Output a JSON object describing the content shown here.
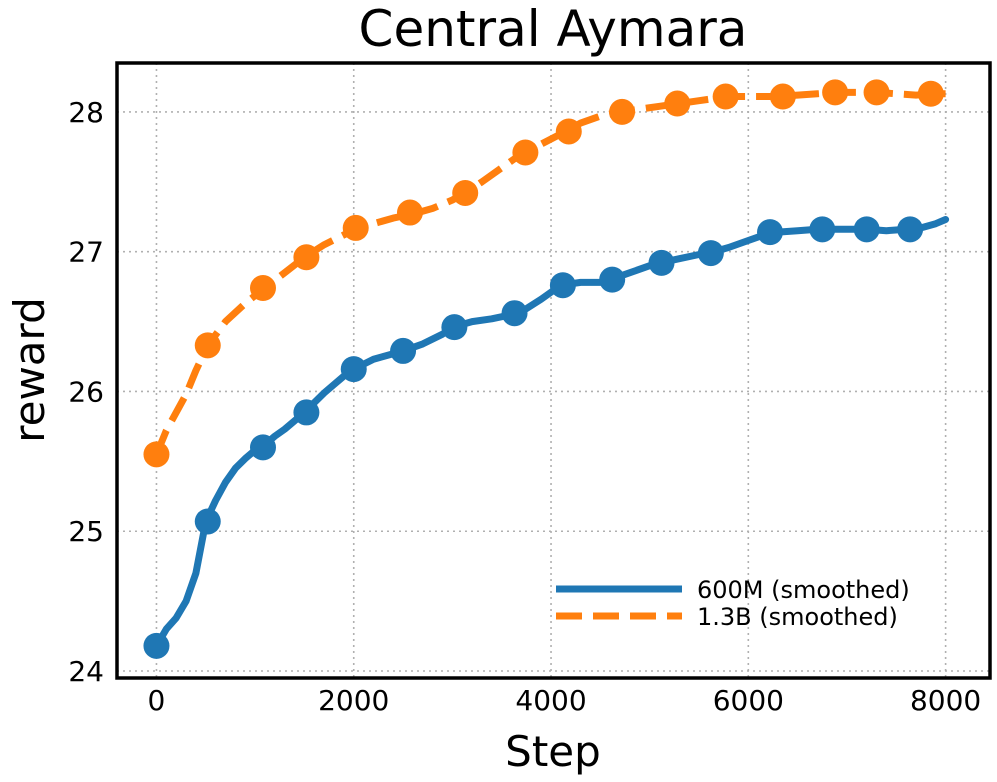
{
  "chart_data": {
    "type": "line",
    "title": "Central Aymara",
    "xlabel": "Step",
    "ylabel": "reward",
    "xlim": [
      -400,
      8450
    ],
    "ylim": [
      23.95,
      28.35
    ],
    "xticks": [
      0,
      2000,
      4000,
      6000,
      8000
    ],
    "yticks": [
      24,
      25,
      26,
      27,
      28
    ],
    "grid": true,
    "legend_position": "lower-right",
    "series": [
      {
        "name": "600M (smoothed)",
        "color": "#1f77b4",
        "line_style": "solid",
        "line": [
          [
            0,
            24.18
          ],
          [
            100,
            24.3
          ],
          [
            200,
            24.38
          ],
          [
            300,
            24.5
          ],
          [
            400,
            24.7
          ],
          [
            500,
            25.07
          ],
          [
            600,
            25.22
          ],
          [
            700,
            25.35
          ],
          [
            800,
            25.45
          ],
          [
            900,
            25.52
          ],
          [
            1000,
            25.58
          ],
          [
            1100,
            25.62
          ],
          [
            1200,
            25.68
          ],
          [
            1300,
            25.73
          ],
          [
            1400,
            25.79
          ],
          [
            1500,
            25.85
          ],
          [
            1600,
            25.92
          ],
          [
            1700,
            25.99
          ],
          [
            1800,
            26.05
          ],
          [
            1900,
            26.11
          ],
          [
            2000,
            26.16
          ],
          [
            2200,
            26.23
          ],
          [
            2400,
            26.27
          ],
          [
            2500,
            26.29
          ],
          [
            2700,
            26.34
          ],
          [
            2900,
            26.41
          ],
          [
            3000,
            26.46
          ],
          [
            3200,
            26.5
          ],
          [
            3400,
            26.52
          ],
          [
            3600,
            26.55
          ],
          [
            3700,
            26.57
          ],
          [
            3900,
            26.66
          ],
          [
            4100,
            26.76
          ],
          [
            4300,
            26.78
          ],
          [
            4500,
            26.78
          ],
          [
            4600,
            26.8
          ],
          [
            4800,
            26.85
          ],
          [
            5000,
            26.9
          ],
          [
            5100,
            26.92
          ],
          [
            5300,
            26.95
          ],
          [
            5500,
            26.98
          ],
          [
            5600,
            26.99
          ],
          [
            5800,
            27.03
          ],
          [
            6000,
            27.08
          ],
          [
            6200,
            27.13
          ],
          [
            6300,
            27.14
          ],
          [
            6500,
            27.15
          ],
          [
            6700,
            27.16
          ],
          [
            6900,
            27.16
          ],
          [
            7100,
            27.16
          ],
          [
            7200,
            27.16
          ],
          [
            7400,
            27.15
          ],
          [
            7600,
            27.16
          ],
          [
            7700,
            27.16
          ],
          [
            7900,
            27.2
          ],
          [
            8000,
            27.23
          ]
        ],
        "markers": [
          [
            0,
            24.18
          ],
          [
            520,
            25.07
          ],
          [
            1080,
            25.6
          ],
          [
            1520,
            25.85
          ],
          [
            2000,
            26.16
          ],
          [
            2500,
            26.29
          ],
          [
            3020,
            26.46
          ],
          [
            3630,
            26.56
          ],
          [
            4120,
            26.76
          ],
          [
            4620,
            26.8
          ],
          [
            5120,
            26.92
          ],
          [
            5620,
            26.99
          ],
          [
            6220,
            27.14
          ],
          [
            6750,
            27.16
          ],
          [
            7200,
            27.16
          ],
          [
            7640,
            27.16
          ]
        ]
      },
      {
        "name": "1.3B (smoothed)",
        "color": "#ff7f0e",
        "line_style": "dashed",
        "line": [
          [
            0,
            25.55
          ],
          [
            100,
            25.72
          ],
          [
            200,
            25.85
          ],
          [
            300,
            25.98
          ],
          [
            400,
            26.15
          ],
          [
            520,
            26.33
          ],
          [
            700,
            26.5
          ],
          [
            900,
            26.63
          ],
          [
            1080,
            26.73
          ],
          [
            1300,
            26.85
          ],
          [
            1500,
            26.96
          ],
          [
            1700,
            27.05
          ],
          [
            1900,
            27.12
          ],
          [
            2000,
            27.16
          ],
          [
            2200,
            27.2
          ],
          [
            2400,
            27.24
          ],
          [
            2600,
            27.27
          ],
          [
            2800,
            27.31
          ],
          [
            3000,
            27.37
          ],
          [
            3130,
            27.42
          ],
          [
            3300,
            27.5
          ],
          [
            3500,
            27.6
          ],
          [
            3700,
            27.7
          ],
          [
            3900,
            27.77
          ],
          [
            4120,
            27.85
          ],
          [
            4300,
            27.92
          ],
          [
            4500,
            27.97
          ],
          [
            4700,
            28.0
          ],
          [
            4900,
            28.02
          ],
          [
            5100,
            28.04
          ],
          [
            5300,
            28.06
          ],
          [
            5500,
            28.08
          ],
          [
            5700,
            28.1
          ],
          [
            5900,
            28.11
          ],
          [
            6100,
            28.11
          ],
          [
            6300,
            28.11
          ],
          [
            6500,
            28.12
          ],
          [
            6700,
            28.13
          ],
          [
            6900,
            28.14
          ],
          [
            7100,
            28.14
          ],
          [
            7300,
            28.14
          ],
          [
            7500,
            28.13
          ],
          [
            7700,
            28.12
          ],
          [
            7900,
            28.13
          ],
          [
            8000,
            28.13
          ]
        ],
        "markers": [
          [
            0,
            25.55
          ],
          [
            520,
            26.33
          ],
          [
            1080,
            26.74
          ],
          [
            1520,
            26.96
          ],
          [
            2020,
            27.17
          ],
          [
            2570,
            27.28
          ],
          [
            3130,
            27.42
          ],
          [
            3740,
            27.71
          ],
          [
            4180,
            27.86
          ],
          [
            4720,
            28.0
          ],
          [
            5280,
            28.06
          ],
          [
            5770,
            28.11
          ],
          [
            6350,
            28.11
          ],
          [
            6880,
            28.14
          ],
          [
            7300,
            28.14
          ],
          [
            7850,
            28.13
          ]
        ]
      }
    ]
  }
}
